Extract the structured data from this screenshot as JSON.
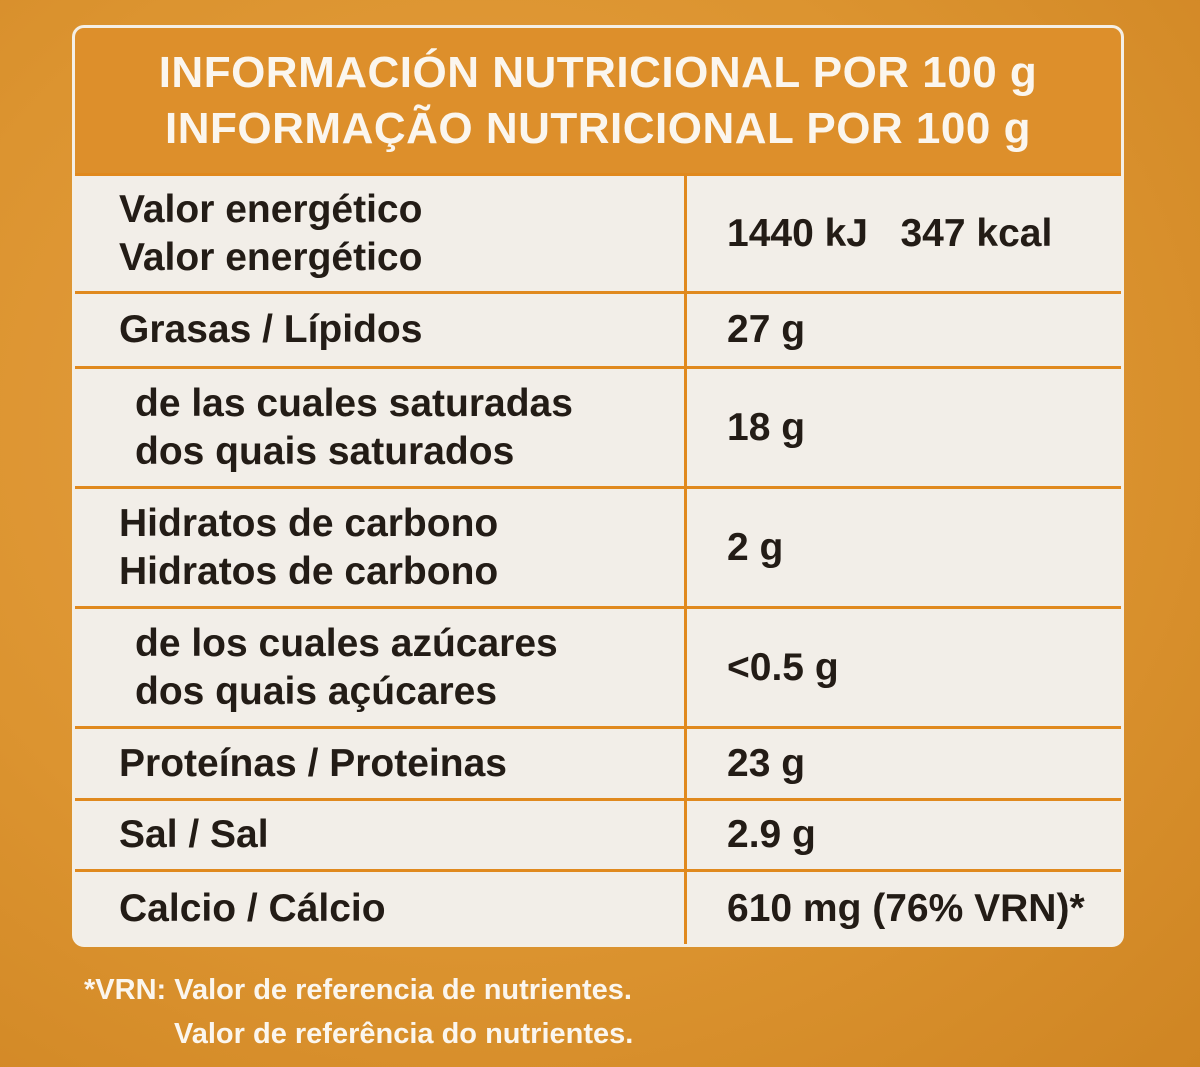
{
  "header": {
    "lines": [
      "INFORMACIÓN NUTRICIONAL POR 100 g",
      "INFORMAÇÃO NUTRICIONAL POR 100 g"
    ]
  },
  "table": {
    "rows": [
      {
        "label": [
          "Valor energético",
          "Valor energético"
        ],
        "value": "1440 kJ   347 kcal"
      },
      {
        "label": [
          "Grasas / Lípidos"
        ],
        "value": "27 g"
      },
      {
        "label": [
          "de las cuales saturadas",
          "dos quais saturados"
        ],
        "value": "18 g"
      },
      {
        "label": [
          "Hidratos de carbono",
          "Hidratos de carbono"
        ],
        "value": "2 g"
      },
      {
        "label": [
          "de los cuales azúcares",
          "dos quais açúcares"
        ],
        "value": "<0.5 g"
      },
      {
        "label": [
          "Proteínas / Proteinas"
        ],
        "value": "23 g"
      },
      {
        "label": [
          "Sal / Sal"
        ],
        "value": "2.9 g"
      },
      {
        "label": [
          "Calcio / Cálcio"
        ],
        "value": "610 mg (76% VRN)*"
      }
    ]
  },
  "footnote": {
    "lines": [
      "*VRN: Valor de referencia de nutrientes.",
      "Valor de referência do nutrientes."
    ]
  }
}
